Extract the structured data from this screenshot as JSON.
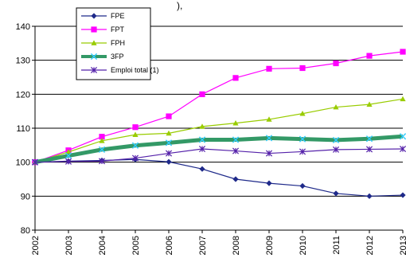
{
  "header_fragment": "),",
  "chart_data": {
    "type": "line",
    "x": [
      "2002",
      "2003",
      "2004",
      "2005",
      "2006",
      "2007",
      "2008",
      "2009",
      "2010",
      "2011",
      "2012",
      "2013"
    ],
    "ylim": [
      80,
      140
    ],
    "yticks": [
      80,
      90,
      100,
      110,
      120,
      130,
      140
    ],
    "grid": "horizontal",
    "legend_position": "top-left",
    "series": [
      {
        "name": "FPE",
        "color": "#1f2a8a",
        "marker": "diamond",
        "values": [
          100,
          100.3,
          100.5,
          100.8,
          100.1,
          98,
          95,
          93.8,
          93,
          90.8,
          90,
          90.3
        ]
      },
      {
        "name": "FPT",
        "color": "#ff00ff",
        "marker": "square",
        "values": [
          100,
          103.5,
          107.5,
          110.3,
          113.5,
          120,
          124.8,
          127.5,
          127.7,
          129.1,
          131.3,
          132.5
        ]
      },
      {
        "name": "FPH",
        "color": "#99cc00",
        "marker": "triangle",
        "values": [
          100,
          103,
          106.3,
          108.1,
          108.5,
          110.5,
          111.5,
          112.6,
          114.3,
          116.2,
          117,
          118.6
        ]
      },
      {
        "name": "3FP",
        "color": "#339966",
        "marker": "x-star",
        "thick": true,
        "values": [
          100,
          101.9,
          103.7,
          104.9,
          105.7,
          106.6,
          106.6,
          107.1,
          106.8,
          106.5,
          106.9,
          107.6
        ]
      },
      {
        "name": "Emploi total (1)",
        "color": "#5522aa",
        "marker": "star",
        "values": [
          100,
          100.2,
          100.3,
          101.2,
          102.6,
          103.9,
          103.3,
          102.6,
          103.1,
          103.7,
          103.8,
          103.9
        ]
      }
    ]
  }
}
